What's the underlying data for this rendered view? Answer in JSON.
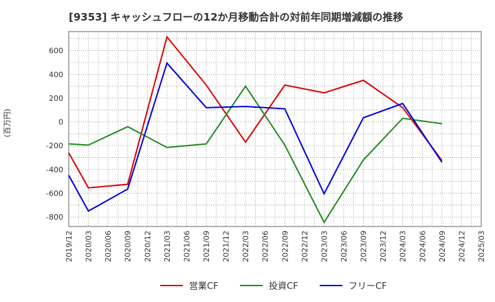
{
  "chart_data": {
    "type": "line",
    "title": "[9353]  キャッシュフローの12か月移動合計の対前年同期増減額の推移",
    "ylabel": "(百万円)",
    "xlabel": "",
    "ylim": [
      -880,
      760
    ],
    "yticks": [
      600,
      400,
      200,
      0,
      -200,
      -400,
      -600,
      -800
    ],
    "grid": true,
    "legend_position": "bottom",
    "categories": [
      "2019/12",
      "2020/03",
      "2020/06",
      "2020/09",
      "2020/12",
      "2021/03",
      "2021/06",
      "2021/09",
      "2021/12",
      "2022/03",
      "2022/06",
      "2022/09",
      "2022/12",
      "2023/03",
      "2023/06",
      "2023/09",
      "2023/12",
      "2024/03",
      "2024/06",
      "2024/09",
      "2024/12",
      "2025/03"
    ],
    "series": [
      {
        "name": "営業CF",
        "color": "#dd0000",
        "values": [
          -260,
          -555,
          null,
          -525,
          null,
          715,
          null,
          310,
          null,
          -170,
          null,
          310,
          null,
          245,
          null,
          350,
          null,
          120,
          null,
          -325,
          null,
          null
        ]
      },
      {
        "name": "投資CF",
        "color": "#228b22",
        "values": [
          -185,
          -195,
          null,
          -40,
          null,
          -215,
          null,
          -185,
          null,
          300,
          null,
          -195,
          null,
          -845,
          null,
          -320,
          null,
          30,
          null,
          -15,
          null,
          null
        ]
      },
      {
        "name": "フリーCF",
        "color": "#0000dd",
        "values": [
          -450,
          -750,
          null,
          -565,
          null,
          495,
          null,
          120,
          null,
          130,
          null,
          110,
          null,
          -605,
          null,
          35,
          null,
          155,
          null,
          -340,
          null,
          null
        ]
      }
    ]
  }
}
